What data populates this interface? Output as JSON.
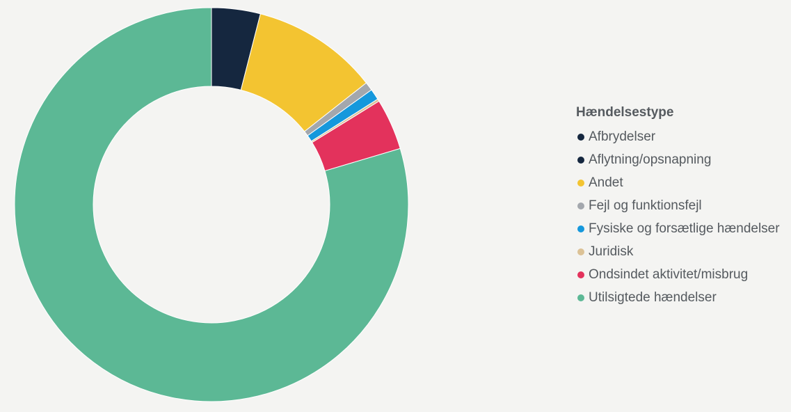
{
  "chart_data": {
    "type": "pie",
    "donut": true,
    "legend_title": "Hændelsestype",
    "legend_position": "right",
    "slices": [
      {
        "label": "Afbrydelser",
        "value": 4.0,
        "color": "#15273f"
      },
      {
        "label": "Aflytning/opsnapning",
        "value": 0.0,
        "color": "#15273f"
      },
      {
        "label": "Andet",
        "value": 10.4,
        "color": "#f3c431"
      },
      {
        "label": "Fejl og funktionsfejl",
        "value": 0.7,
        "color": "#a3a7ad"
      },
      {
        "label": "Fysiske og forsætlige hændelser",
        "value": 0.9,
        "color": "#1598dc"
      },
      {
        "label": "Juridisk",
        "value": 0.2,
        "color": "#dcc296"
      },
      {
        "label": "Ondsindet aktivitet/misbrug",
        "value": 4.2,
        "color": "#e3325c"
      },
      {
        "label": "Utilsigtede hændelser",
        "value": 79.6,
        "color": "#5cb895"
      }
    ]
  }
}
